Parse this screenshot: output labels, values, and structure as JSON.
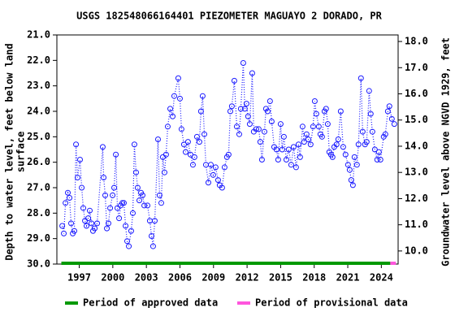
{
  "chart_data": {
    "type": "line",
    "title": "USGS 182548066164401 PIEZOMETER MAGUAYO 2 DORADO, PR",
    "y_label": [
      "Depth to water level, feet below land",
      "surface"
    ],
    "y2_label": "Groundwater level above NGVD 1929, feet",
    "x": [
      1995.48,
      1995.62,
      1995.77,
      1995.98,
      1996.13,
      1996.27,
      1996.42,
      1996.56,
      1996.71,
      1996.85,
      1997.07,
      1997.22,
      1997.36,
      1997.51,
      1997.65,
      1997.8,
      1997.94,
      1998.09,
      1998.23,
      1998.38,
      1998.6,
      1999.1,
      1999.18,
      1999.32,
      1999.47,
      1999.61,
      1999.76,
      1999.98,
      2000.12,
      2000.27,
      2000.41,
      2000.56,
      2000.7,
      2000.85,
      2000.99,
      2001.14,
      2001.28,
      2001.43,
      2001.64,
      2001.79,
      2001.93,
      2002.08,
      2002.22,
      2002.37,
      2002.52,
      2002.66,
      2002.81,
      2003.1,
      2003.31,
      2003.46,
      2003.6,
      2003.75,
      2004.04,
      2004.18,
      2004.33,
      2004.47,
      2004.62,
      2004.76,
      2004.91,
      2005.13,
      2005.35,
      2005.49,
      2005.85,
      2006.0,
      2006.14,
      2006.36,
      2006.51,
      2006.72,
      2006.94,
      2007.16,
      2007.3,
      2007.52,
      2007.74,
      2007.88,
      2008.03,
      2008.18,
      2008.32,
      2008.54,
      2008.76,
      2008.97,
      2009.19,
      2009.41,
      2009.55,
      2009.77,
      2009.99,
      2010.2,
      2010.35,
      2010.5,
      2010.64,
      2010.86,
      2011.08,
      2011.3,
      2011.44,
      2011.66,
      2011.8,
      2011.95,
      2012.09,
      2012.24,
      2012.46,
      2012.6,
      2012.82,
      2013.04,
      2013.18,
      2013.33,
      2013.55,
      2013.69,
      2013.84,
      2014.05,
      2014.2,
      2014.42,
      2014.63,
      2014.78,
      2015.0,
      2015.14,
      2015.29,
      2015.51,
      2015.72,
      2015.94,
      2016.16,
      2016.38,
      2016.6,
      2016.74,
      2016.96,
      2017.1,
      2017.32,
      2017.47,
      2017.68,
      2017.9,
      2018.05,
      2018.19,
      2018.41,
      2018.55,
      2018.7,
      2018.92,
      2019.06,
      2019.21,
      2019.35,
      2019.5,
      2019.64,
      2019.79,
      2020.0,
      2020.15,
      2020.37,
      2020.59,
      2020.8,
      2021.02,
      2021.17,
      2021.31,
      2021.46,
      2021.6,
      2021.82,
      2021.96,
      2022.18,
      2022.33,
      2022.54,
      2022.69,
      2022.91,
      2023.05,
      2023.2,
      2023.42,
      2023.63,
      2023.78,
      2023.92,
      2024.21,
      2024.36,
      2024.58,
      2024.72,
      2024.94,
      2025.16
    ],
    "series": [
      {
        "color": "#1a1aff",
        "values": [
          28.5,
          28.8,
          27.6,
          27.2,
          27.4,
          28.4,
          28.8,
          28.7,
          25.3,
          26.6,
          25.9,
          27.0,
          27.8,
          28.3,
          28.5,
          28.2,
          27.9,
          28.4,
          28.7,
          28.6,
          28.4,
          25.4,
          26.6,
          27.3,
          28.6,
          28.4,
          27.8,
          27.3,
          27.0,
          25.7,
          27.8,
          28.2,
          27.7,
          27.6,
          27.6,
          28.5,
          29.1,
          29.3,
          28.7,
          28.0,
          25.3,
          26.4,
          27.0,
          27.5,
          27.2,
          27.3,
          27.7,
          27.7,
          28.3,
          28.9,
          29.3,
          28.3,
          25.1,
          27.3,
          27.6,
          25.8,
          26.4,
          25.7,
          24.6,
          23.9,
          24.2,
          23.4,
          22.7,
          23.5,
          24.7,
          25.3,
          25.6,
          25.2,
          25.7,
          26.1,
          25.8,
          25.0,
          25.2,
          24.0,
          23.4,
          24.9,
          26.1,
          26.8,
          26.1,
          26.5,
          26.2,
          26.7,
          26.9,
          27.0,
          26.2,
          25.8,
          25.7,
          24.0,
          23.8,
          22.8,
          24.6,
          24.9,
          23.9,
          22.1,
          23.9,
          23.7,
          24.2,
          24.5,
          22.5,
          24.8,
          24.7,
          24.7,
          25.2,
          25.9,
          24.8,
          23.9,
          24.0,
          23.6,
          24.4,
          25.4,
          25.5,
          25.9,
          24.5,
          25.5,
          25.0,
          25.9,
          25.5,
          26.1,
          25.4,
          26.2,
          25.3,
          25.8,
          24.6,
          25.2,
          24.9,
          25.1,
          25.3,
          24.6,
          23.6,
          24.1,
          24.6,
          24.9,
          25.0,
          24.0,
          23.9,
          24.5,
          25.6,
          25.7,
          25.8,
          25.4,
          25.3,
          25.1,
          24.0,
          25.4,
          25.7,
          26.1,
          26.3,
          26.7,
          26.9,
          25.8,
          26.1,
          25.3,
          22.7,
          24.8,
          25.3,
          25.2,
          23.2,
          24.1,
          24.8,
          25.5,
          25.9,
          25.6,
          25.9,
          25.0,
          24.9,
          24.0,
          23.8,
          24.3,
          24.5
        ]
      }
    ],
    "xlim": [
      1995,
      2025.5
    ],
    "xticks": [
      1997,
      2000,
      2003,
      2006,
      2009,
      2012,
      2015,
      2018,
      2021,
      2024
    ],
    "ylim": [
      21,
      30
    ],
    "y_inverted": true,
    "yticks": [
      {
        "value": 21,
        "label": "21.0"
      },
      {
        "value": 22,
        "label": "22.0"
      },
      {
        "value": 23,
        "label": "23.0"
      },
      {
        "value": 24,
        "label": "24.0"
      },
      {
        "value": 25,
        "label": "25.0"
      },
      {
        "value": 26,
        "label": "26.0"
      },
      {
        "value": 27,
        "label": "27.0"
      },
      {
        "value": 28,
        "label": "28.0"
      },
      {
        "value": 29,
        "label": "29.0"
      },
      {
        "value": 30,
        "label": "30.0"
      }
    ],
    "y2lim": [
      9.5,
      18.25
    ],
    "y2ticks": [
      {
        "value": 10,
        "label": "10.0"
      },
      {
        "value": 11,
        "label": "11.0"
      },
      {
        "value": 12,
        "label": "12.0"
      },
      {
        "value": 13,
        "label": "13.0"
      },
      {
        "value": 14,
        "label": "14.0"
      },
      {
        "value": 15,
        "label": "15.0"
      },
      {
        "value": 16,
        "label": "16.0"
      },
      {
        "value": 17,
        "label": "17.0"
      },
      {
        "value": 18,
        "label": "18.0"
      }
    ],
    "periods": [
      {
        "name": "Period of approved data",
        "color": "#009900",
        "range": [
          1995.4,
          2024.8
        ]
      },
      {
        "name": "Period of provisional data",
        "color": "#ff55dd",
        "range": [
          2024.8,
          2025.3
        ]
      }
    ]
  }
}
